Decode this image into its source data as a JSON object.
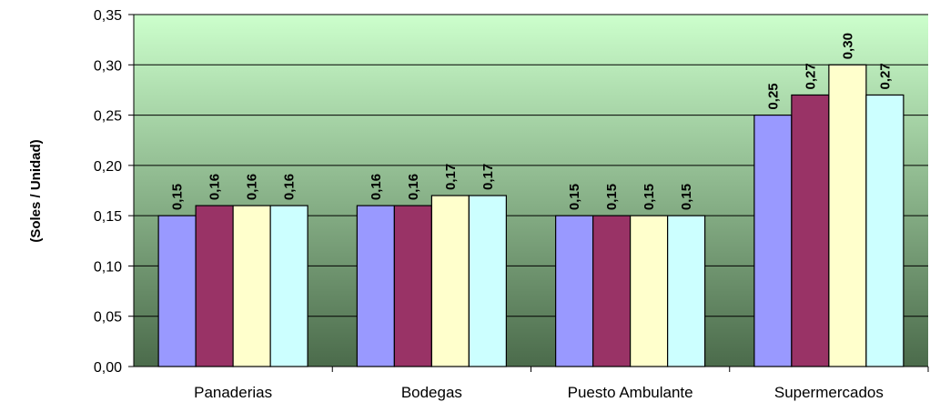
{
  "chart_data": {
    "type": "bar",
    "title": "",
    "xlabel": "",
    "ylabel": "(Soles / Unidad)",
    "ylim": [
      0,
      0.35
    ],
    "yticks": [
      "0,00",
      "0,05",
      "0,10",
      "0,15",
      "0,20",
      "0,25",
      "0,30",
      "0,35"
    ],
    "categories": [
      "Panaderias",
      "Bodegas",
      "Puesto Ambulante",
      "Supermercados"
    ],
    "series": [
      {
        "values": [
          0.15,
          0.16,
          0.15,
          0.25
        ],
        "labels": [
          "0,15",
          "0,16",
          "0,15",
          "0,25"
        ],
        "color": "#9999FF"
      },
      {
        "values": [
          0.16,
          0.16,
          0.15,
          0.27
        ],
        "labels": [
          "0,16",
          "0,16",
          "0,15",
          "0,27"
        ],
        "color": "#993366"
      },
      {
        "values": [
          0.16,
          0.17,
          0.15,
          0.3
        ],
        "labels": [
          "0,16",
          "0,17",
          "0,15",
          "0,30"
        ],
        "color": "#FFFFCC"
      },
      {
        "values": [
          0.16,
          0.17,
          0.15,
          0.27
        ],
        "labels": [
          "0,16",
          "0,17",
          "0,15",
          "0,27"
        ],
        "color": "#CCFFFF"
      }
    ],
    "grid": true,
    "legend": "none",
    "plot_background": {
      "top": "#CCFFCC",
      "bottom": "#4B6B4B"
    }
  }
}
